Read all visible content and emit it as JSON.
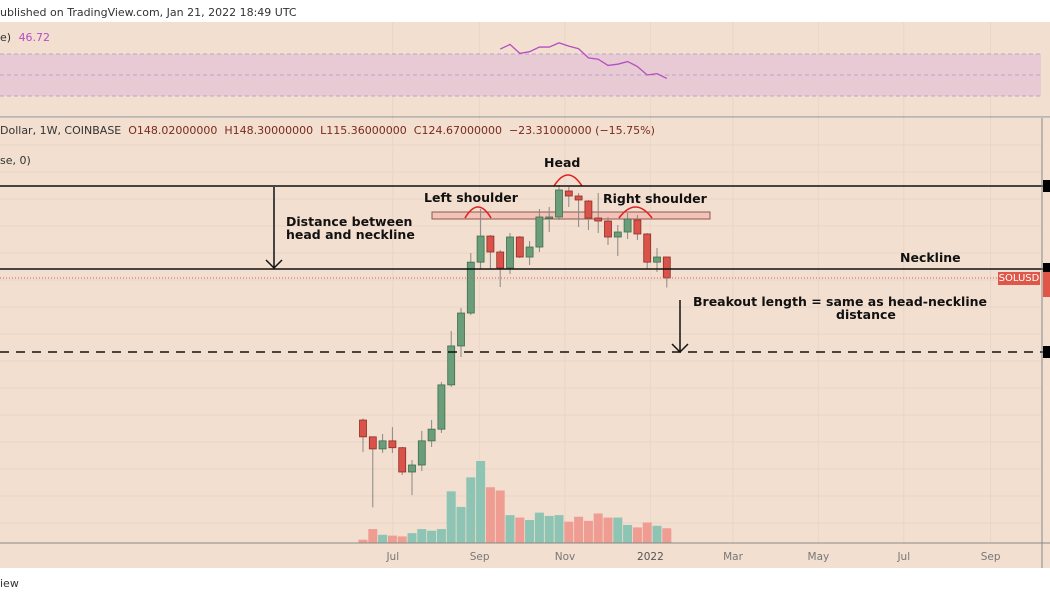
{
  "header": {
    "published": "ublished on TradingView.com, Jan 21, 2022 18:49 UTC"
  },
  "rsi": {
    "label": "e)",
    "value": "46.72",
    "upper": 70,
    "middle": 50,
    "lower": 30,
    "line_color": "#b44fc4",
    "values": [
      74.7,
      79.1,
      70.6,
      72.2,
      76.6,
      76.6,
      80.6,
      77.5,
      75.0,
      66.3,
      65.0,
      59.1,
      60.3,
      62.8,
      58.1,
      50.0,
      51.3,
      46.72
    ]
  },
  "legend": {
    "symbol": "Dollar, 1W, COINBASE",
    "open": "O148.02000000",
    "high": "H148.30000000",
    "low": "L115.36000000",
    "close": "C124.67000000",
    "change": "−23.31000000 (−15.75%)",
    "volume_label": "se, 0)"
  },
  "annotations": {
    "head": "Head",
    "left_shoulder": "Left shoulder",
    "right_shoulder": "Right shoulder",
    "distance_1": "Distance between",
    "distance_2": "head and neckline",
    "neckline": "Neckline",
    "breakout_1": "Breakout length = same as head-neckline",
    "breakout_2": "distance"
  },
  "price_tag": {
    "label": "SOLUSD",
    "color": "#e0574a"
  },
  "footer": {
    "text": "iew"
  },
  "colors": {
    "background": "#f2dfcf",
    "up": "#6a9e7a",
    "down": "#d9534a",
    "vol_up": "#8dc4b4",
    "vol_down": "#ef9c92"
  },
  "chart_data": {
    "type": "candlestick",
    "symbol": "SOLUSD",
    "interval": "1W",
    "scale": "log",
    "grid": true,
    "x_ticks": [
      "Jul",
      "Sep",
      "Nov",
      "2022",
      "Mar",
      "May",
      "Jul",
      "Sep"
    ],
    "levels": {
      "head_resistance": 266,
      "neckline": 134,
      "target": 67
    },
    "candles": [
      {
        "date": "2021-06-14",
        "o": 39.0,
        "h": 39.5,
        "l": 30.0,
        "c": 34.0,
        "v": 4
      },
      {
        "date": "2021-06-21",
        "o": 34.0,
        "h": 34.0,
        "l": 19.1,
        "c": 30.8,
        "v": 17
      },
      {
        "date": "2021-06-28",
        "o": 30.8,
        "h": 34.8,
        "l": 29.8,
        "c": 32.9,
        "v": 10
      },
      {
        "date": "2021-07-05",
        "o": 32.9,
        "h": 36.8,
        "l": 29.8,
        "c": 31.1,
        "v": 9
      },
      {
        "date": "2021-07-12",
        "o": 31.1,
        "h": 31.3,
        "l": 24.9,
        "c": 25.5,
        "v": 8
      },
      {
        "date": "2021-07-19",
        "o": 25.5,
        "h": 28.1,
        "l": 21.1,
        "c": 27.0,
        "v": 12
      },
      {
        "date": "2021-07-26",
        "o": 27.0,
        "h": 35.7,
        "l": 25.7,
        "c": 32.9,
        "v": 17
      },
      {
        "date": "2021-08-02",
        "o": 32.9,
        "h": 39.0,
        "l": 31.3,
        "c": 36.2,
        "v": 15
      },
      {
        "date": "2021-08-09",
        "o": 36.2,
        "h": 53.2,
        "l": 35.1,
        "c": 52.0,
        "v": 17
      },
      {
        "date": "2021-08-16",
        "o": 52.0,
        "h": 80.8,
        "l": 51.1,
        "c": 71.5,
        "v": 63
      },
      {
        "date": "2021-08-23",
        "o": 71.5,
        "h": 97.5,
        "l": 65.3,
        "c": 93.6,
        "v": 44
      },
      {
        "date": "2021-08-30",
        "o": 93.6,
        "h": 152.9,
        "l": 92.0,
        "c": 141.9,
        "v": 80
      },
      {
        "date": "2021-09-06",
        "o": 141.9,
        "h": 219.2,
        "l": 134.2,
        "c": 175.7,
        "v": 100
      },
      {
        "date": "2021-09-13",
        "o": 175.7,
        "h": 177.2,
        "l": 134.2,
        "c": 154.2,
        "v": 68
      },
      {
        "date": "2021-09-20",
        "o": 154.2,
        "h": 156.7,
        "l": 115.8,
        "c": 135.3,
        "v": 64
      },
      {
        "date": "2021-09-27",
        "o": 135.3,
        "h": 180.1,
        "l": 128.8,
        "c": 174.3,
        "v": 34
      },
      {
        "date": "2021-10-04",
        "o": 174.3,
        "h": 175.7,
        "l": 146.8,
        "c": 148.0,
        "v": 31
      },
      {
        "date": "2021-10-11",
        "o": 148.0,
        "h": 168.7,
        "l": 138.6,
        "c": 160.6,
        "v": 28
      },
      {
        "date": "2021-10-18",
        "o": 160.6,
        "h": 219.2,
        "l": 154.2,
        "c": 205.3,
        "v": 37
      },
      {
        "date": "2021-10-25",
        "o": 203.6,
        "h": 222.8,
        "l": 181.6,
        "c": 205.3,
        "v": 33
      },
      {
        "date": "2021-11-01",
        "o": 205.3,
        "h": 266.7,
        "l": 200.3,
        "c": 256.1,
        "v": 34
      },
      {
        "date": "2021-11-08",
        "o": 254.0,
        "h": 262.4,
        "l": 222.8,
        "c": 243.8,
        "v": 26
      },
      {
        "date": "2021-11-15",
        "o": 243.8,
        "h": 249.8,
        "l": 189.2,
        "c": 236.0,
        "v": 32
      },
      {
        "date": "2021-11-22",
        "o": 234.0,
        "h": 236.0,
        "l": 184.6,
        "c": 203.6,
        "v": 27
      },
      {
        "date": "2021-11-29",
        "o": 203.6,
        "h": 249.8,
        "l": 180.1,
        "c": 198.7,
        "v": 36
      },
      {
        "date": "2021-12-06",
        "o": 198.7,
        "h": 205.3,
        "l": 163.3,
        "c": 174.3,
        "v": 31
      },
      {
        "date": "2021-12-13",
        "o": 174.3,
        "h": 192.3,
        "l": 149.2,
        "c": 181.6,
        "v": 31
      },
      {
        "date": "2021-12-20",
        "o": 181.6,
        "h": 212.1,
        "l": 171.5,
        "c": 202.0,
        "v": 22
      },
      {
        "date": "2021-12-27",
        "o": 200.3,
        "h": 208.7,
        "l": 170.1,
        "c": 178.7,
        "v": 19
      },
      {
        "date": "2022-01-03",
        "o": 178.7,
        "h": 180.1,
        "l": 134.2,
        "c": 141.9,
        "v": 25
      },
      {
        "date": "2022-01-10",
        "o": 141.9,
        "h": 159.3,
        "l": 130.9,
        "c": 148.0,
        "v": 21
      },
      {
        "date": "2022-01-17",
        "o": 148.02,
        "h": 148.3,
        "l": 115.36,
        "c": 124.67,
        "v": 18
      }
    ]
  }
}
